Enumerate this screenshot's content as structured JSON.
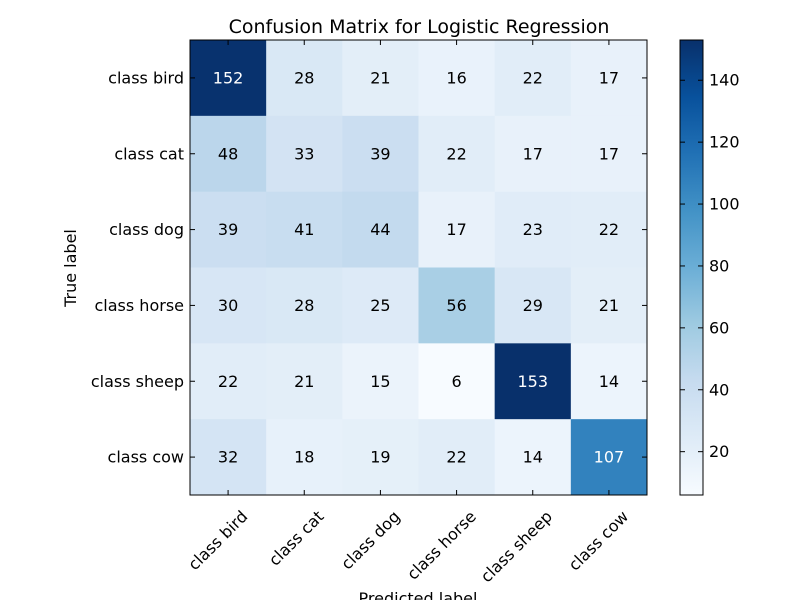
{
  "chart_data": {
    "type": "heatmap",
    "title": "Confusion Matrix for Logistic Regression",
    "xlabel": "Predicted label",
    "ylabel": "True label",
    "x_categories": [
      "class bird",
      "class cat",
      "class dog",
      "class horse",
      "class sheep",
      "class cow"
    ],
    "y_categories": [
      "class bird",
      "class cat",
      "class dog",
      "class horse",
      "class sheep",
      "class cow"
    ],
    "matrix": [
      [
        152,
        28,
        21,
        16,
        22,
        17
      ],
      [
        48,
        33,
        39,
        22,
        17,
        17
      ],
      [
        39,
        41,
        44,
        17,
        23,
        22
      ],
      [
        30,
        28,
        25,
        56,
        29,
        21
      ],
      [
        22,
        21,
        15,
        6,
        153,
        14
      ],
      [
        32,
        18,
        19,
        22,
        14,
        107
      ]
    ],
    "colormap": "Blues",
    "colorbar": {
      "min": 6,
      "max": 153,
      "ticks": [
        20,
        40,
        60,
        80,
        100,
        120,
        140
      ]
    },
    "grid": false
  }
}
